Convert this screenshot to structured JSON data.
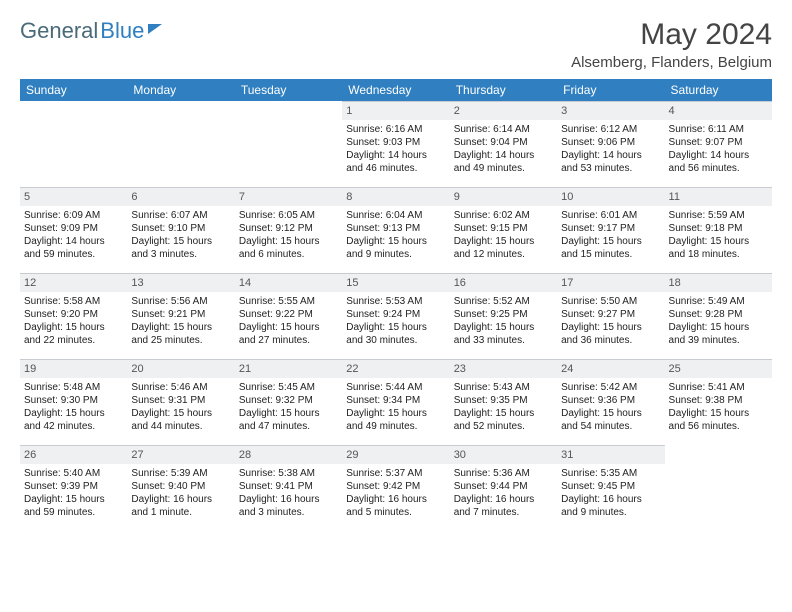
{
  "brand": {
    "part1": "General",
    "part2": "Blue"
  },
  "title": "May 2024",
  "location": "Alsemberg, Flanders, Belgium",
  "colors": {
    "header_bg": "#2f7fc1",
    "header_text": "#ffffff",
    "daynum_bg": "#eef0f2",
    "border": "#c8ccd0",
    "text": "#222222",
    "page_bg": "#ffffff"
  },
  "day_headers": [
    "Sunday",
    "Monday",
    "Tuesday",
    "Wednesday",
    "Thursday",
    "Friday",
    "Saturday"
  ],
  "weeks": [
    [
      null,
      null,
      null,
      {
        "n": "1",
        "sr": "Sunrise: 6:16 AM",
        "ss": "Sunset: 9:03 PM",
        "dl": "Daylight: 14 hours and 46 minutes."
      },
      {
        "n": "2",
        "sr": "Sunrise: 6:14 AM",
        "ss": "Sunset: 9:04 PM",
        "dl": "Daylight: 14 hours and 49 minutes."
      },
      {
        "n": "3",
        "sr": "Sunrise: 6:12 AM",
        "ss": "Sunset: 9:06 PM",
        "dl": "Daylight: 14 hours and 53 minutes."
      },
      {
        "n": "4",
        "sr": "Sunrise: 6:11 AM",
        "ss": "Sunset: 9:07 PM",
        "dl": "Daylight: 14 hours and 56 minutes."
      }
    ],
    [
      {
        "n": "5",
        "sr": "Sunrise: 6:09 AM",
        "ss": "Sunset: 9:09 PM",
        "dl": "Daylight: 14 hours and 59 minutes."
      },
      {
        "n": "6",
        "sr": "Sunrise: 6:07 AM",
        "ss": "Sunset: 9:10 PM",
        "dl": "Daylight: 15 hours and 3 minutes."
      },
      {
        "n": "7",
        "sr": "Sunrise: 6:05 AM",
        "ss": "Sunset: 9:12 PM",
        "dl": "Daylight: 15 hours and 6 minutes."
      },
      {
        "n": "8",
        "sr": "Sunrise: 6:04 AM",
        "ss": "Sunset: 9:13 PM",
        "dl": "Daylight: 15 hours and 9 minutes."
      },
      {
        "n": "9",
        "sr": "Sunrise: 6:02 AM",
        "ss": "Sunset: 9:15 PM",
        "dl": "Daylight: 15 hours and 12 minutes."
      },
      {
        "n": "10",
        "sr": "Sunrise: 6:01 AM",
        "ss": "Sunset: 9:17 PM",
        "dl": "Daylight: 15 hours and 15 minutes."
      },
      {
        "n": "11",
        "sr": "Sunrise: 5:59 AM",
        "ss": "Sunset: 9:18 PM",
        "dl": "Daylight: 15 hours and 18 minutes."
      }
    ],
    [
      {
        "n": "12",
        "sr": "Sunrise: 5:58 AM",
        "ss": "Sunset: 9:20 PM",
        "dl": "Daylight: 15 hours and 22 minutes."
      },
      {
        "n": "13",
        "sr": "Sunrise: 5:56 AM",
        "ss": "Sunset: 9:21 PM",
        "dl": "Daylight: 15 hours and 25 minutes."
      },
      {
        "n": "14",
        "sr": "Sunrise: 5:55 AM",
        "ss": "Sunset: 9:22 PM",
        "dl": "Daylight: 15 hours and 27 minutes."
      },
      {
        "n": "15",
        "sr": "Sunrise: 5:53 AM",
        "ss": "Sunset: 9:24 PM",
        "dl": "Daylight: 15 hours and 30 minutes."
      },
      {
        "n": "16",
        "sr": "Sunrise: 5:52 AM",
        "ss": "Sunset: 9:25 PM",
        "dl": "Daylight: 15 hours and 33 minutes."
      },
      {
        "n": "17",
        "sr": "Sunrise: 5:50 AM",
        "ss": "Sunset: 9:27 PM",
        "dl": "Daylight: 15 hours and 36 minutes."
      },
      {
        "n": "18",
        "sr": "Sunrise: 5:49 AM",
        "ss": "Sunset: 9:28 PM",
        "dl": "Daylight: 15 hours and 39 minutes."
      }
    ],
    [
      {
        "n": "19",
        "sr": "Sunrise: 5:48 AM",
        "ss": "Sunset: 9:30 PM",
        "dl": "Daylight: 15 hours and 42 minutes."
      },
      {
        "n": "20",
        "sr": "Sunrise: 5:46 AM",
        "ss": "Sunset: 9:31 PM",
        "dl": "Daylight: 15 hours and 44 minutes."
      },
      {
        "n": "21",
        "sr": "Sunrise: 5:45 AM",
        "ss": "Sunset: 9:32 PM",
        "dl": "Daylight: 15 hours and 47 minutes."
      },
      {
        "n": "22",
        "sr": "Sunrise: 5:44 AM",
        "ss": "Sunset: 9:34 PM",
        "dl": "Daylight: 15 hours and 49 minutes."
      },
      {
        "n": "23",
        "sr": "Sunrise: 5:43 AM",
        "ss": "Sunset: 9:35 PM",
        "dl": "Daylight: 15 hours and 52 minutes."
      },
      {
        "n": "24",
        "sr": "Sunrise: 5:42 AM",
        "ss": "Sunset: 9:36 PM",
        "dl": "Daylight: 15 hours and 54 minutes."
      },
      {
        "n": "25",
        "sr": "Sunrise: 5:41 AM",
        "ss": "Sunset: 9:38 PM",
        "dl": "Daylight: 15 hours and 56 minutes."
      }
    ],
    [
      {
        "n": "26",
        "sr": "Sunrise: 5:40 AM",
        "ss": "Sunset: 9:39 PM",
        "dl": "Daylight: 15 hours and 59 minutes."
      },
      {
        "n": "27",
        "sr": "Sunrise: 5:39 AM",
        "ss": "Sunset: 9:40 PM",
        "dl": "Daylight: 16 hours and 1 minute."
      },
      {
        "n": "28",
        "sr": "Sunrise: 5:38 AM",
        "ss": "Sunset: 9:41 PM",
        "dl": "Daylight: 16 hours and 3 minutes."
      },
      {
        "n": "29",
        "sr": "Sunrise: 5:37 AM",
        "ss": "Sunset: 9:42 PM",
        "dl": "Daylight: 16 hours and 5 minutes."
      },
      {
        "n": "30",
        "sr": "Sunrise: 5:36 AM",
        "ss": "Sunset: 9:44 PM",
        "dl": "Daylight: 16 hours and 7 minutes."
      },
      {
        "n": "31",
        "sr": "Sunrise: 5:35 AM",
        "ss": "Sunset: 9:45 PM",
        "dl": "Daylight: 16 hours and 9 minutes."
      },
      null
    ]
  ]
}
